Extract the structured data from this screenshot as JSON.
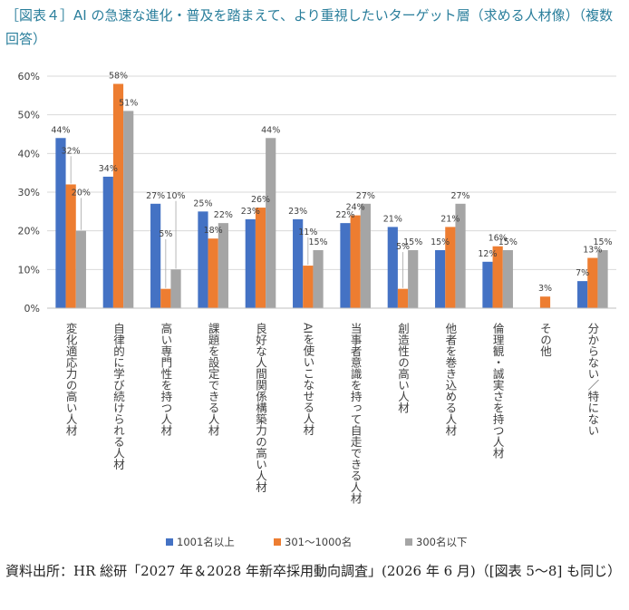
{
  "title": "［図表４］AI の急速な進化・普及を踏まえて、より重視したいターゲット層（求める人材像）（複数回答）",
  "source": "資料出所：HR 総研「2027 年＆2028 年新卒採用動向調査」(2026 年 6 月)（[図表 5～8] も同じ）",
  "colors": {
    "s1": "#4472c4",
    "s2": "#ed7d31",
    "s3": "#a5a5a5",
    "grid": "#d9d9d9",
    "axis": "#bfbfbf",
    "text": "#404040"
  },
  "chart_data": {
    "type": "bar",
    "title": "",
    "xlabel": "",
    "ylabel": "",
    "ylim": [
      0,
      60
    ],
    "yticks": [
      "0%",
      "10%",
      "20%",
      "30%",
      "40%",
      "50%",
      "60%"
    ],
    "grid": true,
    "legend_position": "bottom",
    "categories": [
      "変化適応力の高い人材",
      "自律的に学び続けられる人材",
      "高い専門性を持つ人材",
      "課題を設定できる人材",
      "良好な人間関係構築力の高い人材",
      "AIを使いこなせる人材",
      "当事者意識を持って自走できる人材",
      "創造性の高い人材",
      "他者を巻き込める人材",
      "倫理観・誠実さを持つ人材",
      "その他",
      "分からない／特にない"
    ],
    "series": [
      {
        "name": "1001名以上",
        "values": [
          44,
          34,
          27,
          25,
          23,
          23,
          22,
          21,
          15,
          12,
          0,
          7
        ],
        "labels": [
          "44%",
          "34%",
          "27%",
          "25%",
          "23%",
          "23%",
          "22%",
          "21%",
          "15%",
          "12%",
          "",
          "7%"
        ]
      },
      {
        "name": "301～1000名",
        "values": [
          32,
          58,
          5,
          18,
          26,
          11,
          24,
          5,
          21,
          16,
          3,
          13
        ],
        "labels": [
          "32%",
          "58%",
          "5%",
          "18%",
          "26%",
          "11%",
          "24%",
          "5%",
          "21%",
          "16%",
          "3%",
          "13%"
        ]
      },
      {
        "name": "300名以下",
        "values": [
          20,
          51,
          10,
          22,
          44,
          15,
          27,
          15,
          27,
          15,
          0,
          15
        ],
        "labels": [
          "20%",
          "51%",
          "10%",
          "22%",
          "44%",
          "15%",
          "27%",
          "15%",
          "27%",
          "15%",
          "",
          "15%"
        ]
      }
    ]
  }
}
